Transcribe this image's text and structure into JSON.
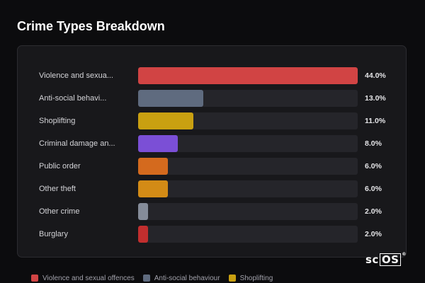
{
  "title": "Crime Types Breakdown",
  "chart_data": {
    "type": "bar",
    "orientation": "horizontal",
    "title": "Crime Types Breakdown",
    "categories": [
      "Violence and sexua...",
      "Anti-social behavi...",
      "Shoplifting",
      "Criminal damage an...",
      "Public order",
      "Other theft",
      "Other crime",
      "Burglary"
    ],
    "values": [
      44.0,
      13.0,
      11.0,
      8.0,
      6.0,
      6.0,
      2.0,
      2.0
    ],
    "value_labels": [
      "44.0%",
      "13.0%",
      "11.0%",
      "8.0%",
      "6.0%",
      "6.0%",
      "2.0%",
      "2.0%"
    ],
    "colors": [
      "#d14444",
      "#5f6b7f",
      "#c9a011",
      "#7b4fd6",
      "#d46a1e",
      "#d38b16",
      "#858c99",
      "#c22e2e"
    ],
    "xlim": [
      0,
      44
    ],
    "grid": false,
    "legend_placement": "bottom"
  },
  "legend": [
    {
      "label": "Violence and sexual offences",
      "color": "#d14444"
    },
    {
      "label": "Anti-social behaviour",
      "color": "#5f6b7f"
    },
    {
      "label": "Shoplifting",
      "color": "#c9a011"
    }
  ],
  "logo": {
    "prefix": "sc",
    "boxed": "OS",
    "mark": "®"
  }
}
